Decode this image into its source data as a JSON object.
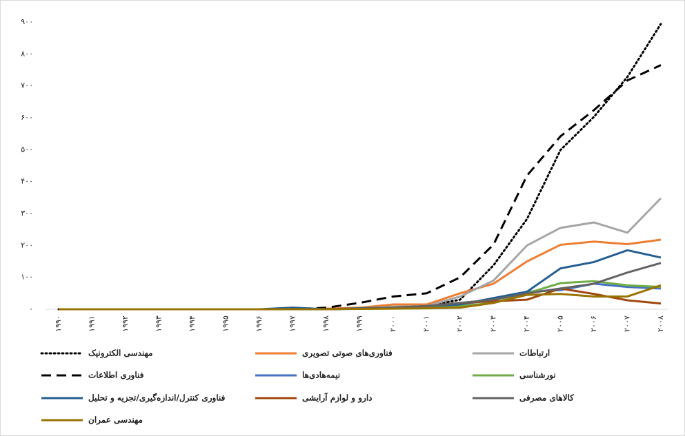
{
  "chart_data": {
    "type": "line",
    "categories": [
      "۱۹۹۰",
      "۱۹۹۱",
      "۱۹۹۲",
      "۱۹۹۳",
      "۱۹۹۴",
      "۱۹۹۵",
      "۱۹۹۶",
      "۱۹۹۷",
      "۱۹۹۸",
      "۱۹۹۹",
      "۲۰۰۰",
      "۲۰۰۱",
      "۲۰۰۲",
      "۲۰۰۳",
      "۲۰۰۴",
      "۲۰۰۵",
      "۲۰۰۶",
      "۲۰۰۷",
      "۲۰۰۸"
    ],
    "ylim": [
      0,
      900
    ],
    "yticks": [
      {
        "value": 0,
        "label": "۰"
      },
      {
        "value": 100,
        "label": "۱۰۰"
      },
      {
        "value": 200,
        "label": "۲۰۰"
      },
      {
        "value": 300,
        "label": "۳۰۰"
      },
      {
        "value": 400,
        "label": "۴۰۰"
      },
      {
        "value": 500,
        "label": "۵۰۰"
      },
      {
        "value": 600,
        "label": "۶۰۰"
      },
      {
        "value": 700,
        "label": "۷۰۰"
      },
      {
        "value": 800,
        "label": "۸۰۰"
      },
      {
        "value": 900,
        "label": "۹۰۰"
      }
    ],
    "grid": false,
    "legend": "bottom",
    "series": [
      {
        "name": "مهندسی الکترونیک",
        "color": "#000000",
        "line_style": "dotted",
        "values": [
          0,
          0,
          0,
          0,
          0,
          0,
          0,
          0,
          0,
          2,
          5,
          10,
          30,
          138,
          283,
          499,
          603,
          728,
          894
        ]
      },
      {
        "name": "فناوری‌های صوتی تصویری",
        "color": "#ed7d31",
        "line_style": "solid",
        "values": [
          0,
          0,
          0,
          0,
          0,
          0,
          0,
          0,
          2,
          5,
          15,
          15,
          50,
          80,
          150,
          202,
          212,
          204,
          218
        ]
      },
      {
        "name": "ارتباطات",
        "color": "#a5a5a5",
        "line_style": "solid",
        "values": [
          0,
          0,
          0,
          0,
          0,
          0,
          0,
          0,
          0,
          3,
          8,
          10,
          40,
          90,
          200,
          255,
          272,
          240,
          348
        ]
      },
      {
        "name": "فناوری اطلاعات",
        "color": "#000000",
        "line_style": "dashed",
        "values": [
          0,
          0,
          0,
          0,
          0,
          0,
          0,
          0,
          5,
          20,
          40,
          50,
          100,
          203,
          419,
          542,
          624,
          717,
          765
        ]
      },
      {
        "name": "نیمه‌هادی‌ها",
        "color": "#4472c4",
        "line_style": "solid",
        "values": [
          0,
          0,
          0,
          0,
          0,
          0,
          0,
          0,
          0,
          2,
          5,
          8,
          15,
          30,
          55,
          60,
          80,
          70,
          65
        ]
      },
      {
        "name": "نورشناسی",
        "color": "#70ad47",
        "line_style": "solid",
        "values": [
          0,
          0,
          0,
          0,
          0,
          0,
          0,
          0,
          0,
          2,
          4,
          6,
          10,
          20,
          50,
          82,
          88,
          75,
          70
        ]
      },
      {
        "name": "فناوری کنترل/اندازه‌گیری/تجزیه و تحلیل",
        "color": "#255e91",
        "line_style": "solid",
        "values": [
          0,
          0,
          0,
          0,
          0,
          0,
          0,
          5,
          0,
          3,
          5,
          10,
          15,
          35,
          55,
          128,
          148,
          185,
          162
        ]
      },
      {
        "name": "دارو و لوازم آرایشی",
        "color": "#9e480e",
        "line_style": "solid",
        "values": [
          0,
          0,
          0,
          0,
          0,
          0,
          0,
          0,
          0,
          2,
          5,
          10,
          20,
          25,
          30,
          65,
          48,
          28,
          18
        ]
      },
      {
        "name": "کالاهای مصرفی",
        "color": "#636363",
        "line_style": "solid",
        "values": [
          0,
          0,
          0,
          0,
          0,
          0,
          0,
          0,
          0,
          2,
          5,
          10,
          20,
          30,
          50,
          65,
          80,
          115,
          145
        ]
      },
      {
        "name": "مهندسی عمران",
        "color": "#997300",
        "line_style": "solid",
        "values": [
          0,
          0,
          0,
          0,
          0,
          0,
          0,
          0,
          0,
          1,
          2,
          3,
          5,
          20,
          45,
          48,
          40,
          40,
          75
        ]
      }
    ]
  }
}
